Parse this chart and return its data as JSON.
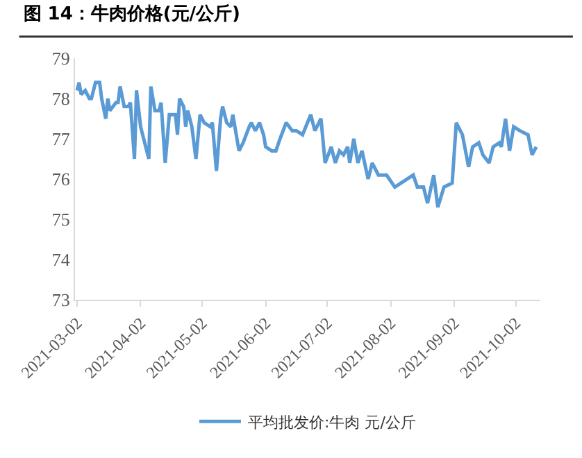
{
  "chart_data": {
    "type": "line",
    "title": "图 14：牛肉价格(元/公斤)",
    "x": [
      "2021-03-02",
      "2021-03-03",
      "2021-03-04",
      "2021-03-06",
      "2021-03-08",
      "2021-03-09",
      "2021-03-11",
      "2021-03-13",
      "2021-03-14",
      "2021-03-16",
      "2021-03-17",
      "2021-03-18",
      "2021-03-21",
      "2021-03-22",
      "2021-03-23",
      "2021-03-25",
      "2021-03-27",
      "2021-03-28",
      "2021-03-30",
      "2021-03-31",
      "2021-04-02",
      "2021-04-04",
      "2021-04-06",
      "2021-04-07",
      "2021-04-09",
      "2021-04-11",
      "2021-04-12",
      "2021-04-14",
      "2021-04-16",
      "2021-04-18",
      "2021-04-19",
      "2021-04-20",
      "2021-04-21",
      "2021-04-23",
      "2021-04-24",
      "2021-04-25",
      "2021-04-27",
      "2021-04-29",
      "2021-05-01",
      "2021-05-03",
      "2021-05-06",
      "2021-05-07",
      "2021-05-09",
      "2021-05-11",
      "2021-05-12",
      "2021-05-14",
      "2021-05-16",
      "2021-05-17",
      "2021-05-20",
      "2021-05-22",
      "2021-05-25",
      "2021-05-26",
      "2021-05-28",
      "2021-05-30",
      "2021-06-01",
      "2021-06-02",
      "2021-06-05",
      "2021-06-07",
      "2021-06-09",
      "2021-06-12",
      "2021-06-15",
      "2021-06-17",
      "2021-06-20",
      "2021-06-24",
      "2021-06-26",
      "2021-06-29",
      "2021-07-01",
      "2021-07-04",
      "2021-07-06",
      "2021-07-08",
      "2021-07-10",
      "2021-07-12",
      "2021-07-13",
      "2021-07-15",
      "2021-07-17",
      "2021-07-19",
      "2021-07-22",
      "2021-07-24",
      "2021-07-27",
      "2021-07-31",
      "2021-08-04",
      "2021-08-07",
      "2021-08-13",
      "2021-08-15",
      "2021-08-18",
      "2021-08-20",
      "2021-08-23",
      "2021-08-25",
      "2021-08-28",
      "2021-09-01",
      "2021-09-03",
      "2021-09-06",
      "2021-09-09",
      "2021-09-11",
      "2021-09-14",
      "2021-09-16",
      "2021-09-19",
      "2021-09-21",
      "2021-09-24",
      "2021-09-25",
      "2021-09-27",
      "2021-09-29",
      "2021-10-01",
      "2021-10-04",
      "2021-10-08",
      "2021-10-10",
      "2021-10-12"
    ],
    "series": [
      {
        "name": "平均批发价:牛肉 元/公斤",
        "color": "#5b9bd5",
        "values": [
          78.2,
          78.4,
          78.1,
          78.2,
          78.0,
          78.0,
          78.4,
          78.4,
          78.0,
          77.5,
          78.0,
          77.7,
          77.9,
          77.9,
          78.3,
          77.8,
          77.8,
          77.9,
          76.5,
          78.2,
          77.3,
          76.9,
          76.5,
          78.3,
          77.7,
          77.7,
          77.9,
          76.4,
          77.6,
          77.6,
          77.6,
          77.1,
          78.0,
          77.8,
          77.3,
          77.7,
          77.3,
          76.5,
          77.6,
          77.4,
          77.3,
          77.4,
          76.2,
          77.5,
          77.8,
          77.4,
          77.3,
          77.6,
          76.7,
          76.9,
          77.3,
          77.4,
          77.2,
          77.4,
          77.1,
          76.8,
          76.7,
          76.7,
          77.0,
          77.4,
          77.2,
          77.2,
          77.1,
          77.6,
          77.2,
          77.5,
          76.4,
          76.8,
          76.4,
          76.7,
          76.6,
          76.8,
          76.4,
          77.0,
          76.4,
          76.7,
          76.0,
          76.4,
          76.1,
          76.1,
          75.8,
          75.9,
          76.1,
          75.8,
          75.8,
          75.4,
          76.1,
          75.3,
          75.8,
          75.9,
          77.4,
          77.1,
          76.3,
          76.8,
          76.9,
          76.6,
          76.4,
          76.8,
          76.9,
          76.8,
          77.5,
          76.7,
          77.3,
          77.2,
          77.1,
          76.6,
          76.8
        ]
      }
    ],
    "xlim": [
      "2021-03-01",
      "2021-10-14"
    ],
    "xticks": [
      {
        "value": "2021-03-02",
        "label": "2021-03-02"
      },
      {
        "value": "2021-04-02",
        "label": "2021-04-02"
      },
      {
        "value": "2021-05-02",
        "label": "2021-05-02"
      },
      {
        "value": "2021-06-02",
        "label": "2021-06-02"
      },
      {
        "value": "2021-07-02",
        "label": "2021-07-02"
      },
      {
        "value": "2021-08-02",
        "label": "2021-08-02"
      },
      {
        "value": "2021-09-02",
        "label": "2021-09-02"
      },
      {
        "value": "2021-10-02",
        "label": "2021-10-02"
      }
    ],
    "ylim": [
      73,
      79
    ],
    "yticks": [
      73,
      74,
      75,
      76,
      77,
      78,
      79
    ],
    "legend": "bottom",
    "marker": "none",
    "line_style": "solid"
  }
}
